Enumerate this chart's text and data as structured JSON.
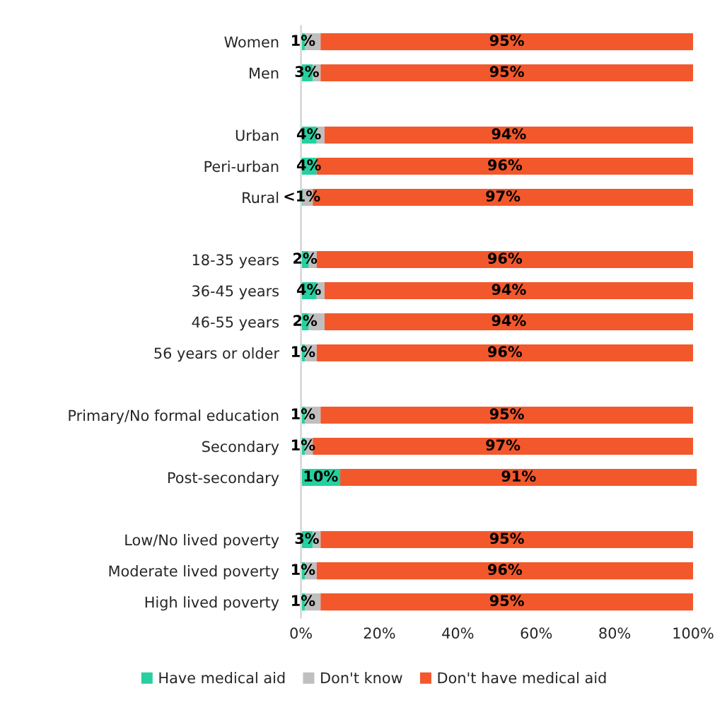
{
  "chart_data": {
    "type": "bar",
    "orientation": "horizontal",
    "stacked": true,
    "categories": [
      "Women",
      "Men",
      null,
      "Urban",
      "Peri-urban",
      "Rural",
      null,
      "18-35 years",
      "36-45 years",
      "46-55 years",
      "56 years or older",
      null,
      "Primary/No formal education",
      "Secondary",
      "Post-secondary",
      null,
      "Low/No lived poverty",
      "Moderate lived poverty",
      "High lived poverty"
    ],
    "series": [
      {
        "name": "Have medical aid",
        "color": "#26d0a0",
        "values": [
          1,
          3,
          null,
          4,
          4,
          0.4,
          null,
          2,
          4,
          2,
          1,
          null,
          1,
          1,
          10,
          null,
          3,
          1,
          1
        ],
        "value_labels": [
          "1%",
          "3%",
          null,
          "4%",
          "4%",
          "<1%",
          null,
          "2%",
          "4%",
          "2%",
          "1%",
          null,
          "1%",
          "1%",
          "10%",
          null,
          "3%",
          "1%",
          "1%"
        ]
      },
      {
        "name": "Don't know",
        "color": "#bfbfbf",
        "values": [
          4,
          2,
          null,
          2,
          0,
          2.6,
          null,
          2,
          2,
          4,
          3,
          null,
          4,
          2,
          0,
          null,
          2,
          3,
          4
        ]
      },
      {
        "name": "Don't have medical aid",
        "color": "#f2582c",
        "values": [
          95,
          95,
          null,
          94,
          96,
          97,
          null,
          96,
          94,
          94,
          96,
          null,
          95,
          97,
          91,
          null,
          95,
          96,
          95
        ],
        "value_labels": [
          "95%",
          "95%",
          null,
          "94%",
          "96%",
          "97%",
          null,
          "96%",
          "94%",
          "94%",
          "96%",
          null,
          "95%",
          "97%",
          "91%",
          null,
          "95%",
          "96%",
          "95%"
        ]
      }
    ],
    "xlim": [
      0,
      101
    ],
    "xticks": [
      {
        "value": 0,
        "label": "0%"
      },
      {
        "value": 20,
        "label": "20%"
      },
      {
        "value": 40,
        "label": "40%"
      },
      {
        "value": 60,
        "label": "60%"
      },
      {
        "value": 80,
        "label": "80%"
      },
      {
        "value": 100,
        "label": "100%"
      }
    ],
    "legend": "bottom",
    "grid": false
  }
}
